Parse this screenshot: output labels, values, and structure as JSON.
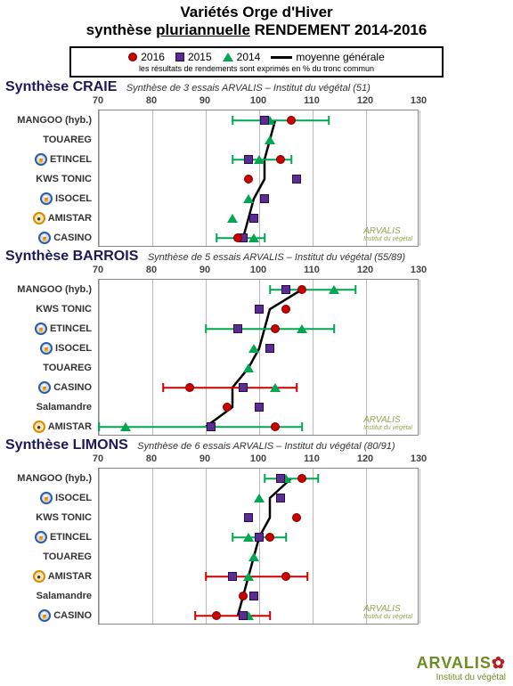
{
  "title_line1": "Variétés Orge d'Hiver",
  "title_line2_a": "synthèse ",
  "title_line2_b": "pluriannuelle",
  "title_line2_c": "  RENDEMENT 2014-2016",
  "legend": {
    "y2016": "2016",
    "y2015": "2015",
    "y2014": "2014",
    "avg": "moyenne générale",
    "sub": "les résultats de rendements sont exprimés en % du tronc commun",
    "color_2016": "#cc0000",
    "color_2015": "#5a2d91",
    "color_2014": "#00a651",
    "color_avg": "#000000"
  },
  "axis": {
    "min": 70,
    "max": 130,
    "ticks": [
      70,
      80,
      90,
      100,
      110,
      120,
      130
    ]
  },
  "charts": [
    {
      "title": "Synthèse CRAIE",
      "sub": "Synthèse de 3 essais ARVALIS – Institut du végétal (51)",
      "rows": [
        {
          "label": "MANGOO (hyb.)",
          "badge": null,
          "v2016": 106,
          "v2015": 101,
          "v2014": 102,
          "avg": 103,
          "err_lo": 95,
          "err_hi": 113,
          "err_col": "#00a651"
        },
        {
          "label": "TOUAREG",
          "badge": null,
          "v2016": null,
          "v2015": null,
          "v2014": 102,
          "avg": 102,
          "err_lo": null,
          "err_hi": null,
          "err_col": null
        },
        {
          "label": "ETINCEL",
          "badge": "blue",
          "v2016": 104,
          "v2015": 98,
          "v2014": 100,
          "avg": 101,
          "err_lo": 95,
          "err_hi": 106,
          "err_col": "#00a651"
        },
        {
          "label": "KWS TONIC",
          "badge": null,
          "v2016": 98,
          "v2015": 107,
          "v2014": null,
          "avg": 101,
          "err_lo": null,
          "err_hi": null,
          "err_col": null
        },
        {
          "label": "ISOCEL",
          "badge": "blue",
          "v2016": null,
          "v2015": 101,
          "v2014": 98,
          "avg": 99,
          "err_lo": null,
          "err_hi": null,
          "err_col": null
        },
        {
          "label": "AMISTAR",
          "badge": "orange",
          "v2016": null,
          "v2015": 99,
          "v2014": 95,
          "avg": 98,
          "err_lo": null,
          "err_hi": null,
          "err_col": null
        },
        {
          "label": "CASINO",
          "badge": "blue",
          "v2016": 96,
          "v2015": 97,
          "v2014": 99,
          "avg": 97,
          "err_lo": 92,
          "err_hi": 101,
          "err_col": "#00a651"
        }
      ]
    },
    {
      "title": "Synthèse BARROIS",
      "sub": "Synthèse de 5 essais ARVALIS – Institut du végétal (55/89)",
      "rows": [
        {
          "label": "MANGOO (hyb.)",
          "badge": null,
          "v2016": 108,
          "v2015": 105,
          "v2014": 114,
          "avg": 108,
          "err_lo": 102,
          "err_hi": 118,
          "err_col": "#00a651"
        },
        {
          "label": "KWS TONIC",
          "badge": null,
          "v2016": 105,
          "v2015": 100,
          "v2014": null,
          "avg": 102,
          "err_lo": null,
          "err_hi": null,
          "err_col": null
        },
        {
          "label": "ETINCEL",
          "badge": "blue",
          "v2016": 103,
          "v2015": 96,
          "v2014": 108,
          "avg": 101,
          "err_lo": 90,
          "err_hi": 114,
          "err_col": "#00a651"
        },
        {
          "label": "ISOCEL",
          "badge": "blue",
          "v2016": null,
          "v2015": 102,
          "v2014": 99,
          "avg": 100,
          "err_lo": null,
          "err_hi": null,
          "err_col": null
        },
        {
          "label": "TOUAREG",
          "badge": null,
          "v2016": null,
          "v2015": null,
          "v2014": 98,
          "avg": 98,
          "err_lo": null,
          "err_hi": null,
          "err_col": null
        },
        {
          "label": "CASINO",
          "badge": "blue",
          "v2016": 87,
          "v2015": 97,
          "v2014": 103,
          "avg": 95,
          "err_lo": 82,
          "err_hi": 107,
          "err_col": "#cc0000"
        },
        {
          "label": "Salamandre",
          "badge": null,
          "v2016": 94,
          "v2015": 100,
          "v2014": null,
          "avg": 95,
          "err_lo": null,
          "err_hi": null,
          "err_col": null
        },
        {
          "label": "AMISTAR",
          "badge": "orange",
          "v2016": 103,
          "v2015": 91,
          "v2014": 75,
          "avg": 90,
          "err_lo": 70,
          "err_hi": 108,
          "err_col": "#00a651"
        }
      ]
    },
    {
      "title": "Synthèse LIMONS",
      "sub": "Synthèse de 6 essais ARVALIS – Institut du végétal (80/91)",
      "rows": [
        {
          "label": "MANGOO (hyb.)",
          "badge": null,
          "v2016": 108,
          "v2015": 104,
          "v2014": 105,
          "avg": 106,
          "err_lo": 101,
          "err_hi": 111,
          "err_col": "#00a651"
        },
        {
          "label": "ISOCEL",
          "badge": "blue",
          "v2016": null,
          "v2015": 104,
          "v2014": 100,
          "avg": 102,
          "err_lo": null,
          "err_hi": null,
          "err_col": null
        },
        {
          "label": "KWS TONIC",
          "badge": null,
          "v2016": 107,
          "v2015": 98,
          "v2014": null,
          "avg": 102,
          "err_lo": null,
          "err_hi": null,
          "err_col": null
        },
        {
          "label": "ETINCEL",
          "badge": "blue",
          "v2016": 102,
          "v2015": 100,
          "v2014": 98,
          "avg": 100,
          "err_lo": 95,
          "err_hi": 105,
          "err_col": "#00a651"
        },
        {
          "label": "TOUAREG",
          "badge": null,
          "v2016": null,
          "v2015": null,
          "v2014": 99,
          "avg": 99,
          "err_lo": null,
          "err_hi": null,
          "err_col": null
        },
        {
          "label": "AMISTAR",
          "badge": "orange",
          "v2016": 105,
          "v2015": 95,
          "v2014": 98,
          "avg": 98,
          "err_lo": 90,
          "err_hi": 109,
          "err_col": "#cc0000"
        },
        {
          "label": "Salamandre",
          "badge": null,
          "v2016": 97,
          "v2015": 99,
          "v2014": null,
          "avg": 97,
          "err_lo": null,
          "err_hi": null,
          "err_col": null
        },
        {
          "label": "CASINO",
          "badge": "blue",
          "v2016": 92,
          "v2015": 97,
          "v2014": 98,
          "avg": 96,
          "err_lo": 88,
          "err_hi": 102,
          "err_col": "#cc0000"
        }
      ]
    }
  ],
  "watermark": {
    "line1": "ARVALIS",
    "line2": "Institut du végétal"
  },
  "footer": {
    "big": "ARVALIS",
    "sm": "Institut du végétal"
  }
}
